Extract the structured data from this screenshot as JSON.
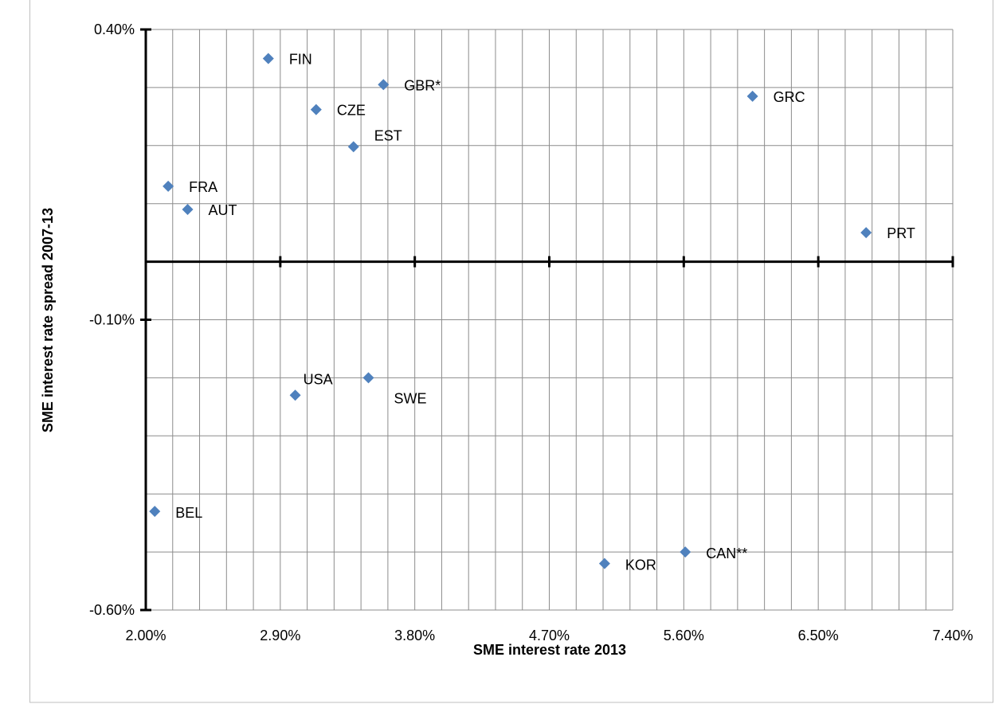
{
  "chart_data": {
    "type": "scatter",
    "title": "",
    "xlabel": "SME interest rate 2013",
    "ylabel": "SME interest rate spread 2007-13",
    "xlim": [
      2.0,
      7.4
    ],
    "ylim": [
      -0.6,
      0.4
    ],
    "x_ticks": [
      "2.00%",
      "2.90%",
      "3.80%",
      "4.70%",
      "5.60%",
      "6.50%",
      "7.40%"
    ],
    "y_ticks": [
      "0.40%",
      "-0.10%",
      "-0.60%"
    ],
    "grid": true,
    "marker_color": "#4f81bd",
    "points": [
      {
        "label": "FIN",
        "x": 2.82,
        "y": 0.35
      },
      {
        "label": "GBR*",
        "x": 3.59,
        "y": 0.305
      },
      {
        "label": "GRC",
        "x": 6.06,
        "y": 0.285
      },
      {
        "label": "CZE",
        "x": 3.14,
        "y": 0.262
      },
      {
        "label": "EST",
        "x": 3.39,
        "y": 0.198
      },
      {
        "label": "FRA",
        "x": 2.15,
        "y": 0.13
      },
      {
        "label": "AUT",
        "x": 2.28,
        "y": 0.09
      },
      {
        "label": "PRT",
        "x": 6.82,
        "y": 0.05
      },
      {
        "label": "SWE",
        "x": 3.49,
        "y": -0.2
      },
      {
        "label": "USA",
        "x": 3.0,
        "y": -0.23
      },
      {
        "label": "BEL",
        "x": 2.06,
        "y": -0.43
      },
      {
        "label": "CAN**",
        "x": 5.61,
        "y": -0.5
      },
      {
        "label": "KOR",
        "x": 5.07,
        "y": -0.52
      }
    ]
  }
}
